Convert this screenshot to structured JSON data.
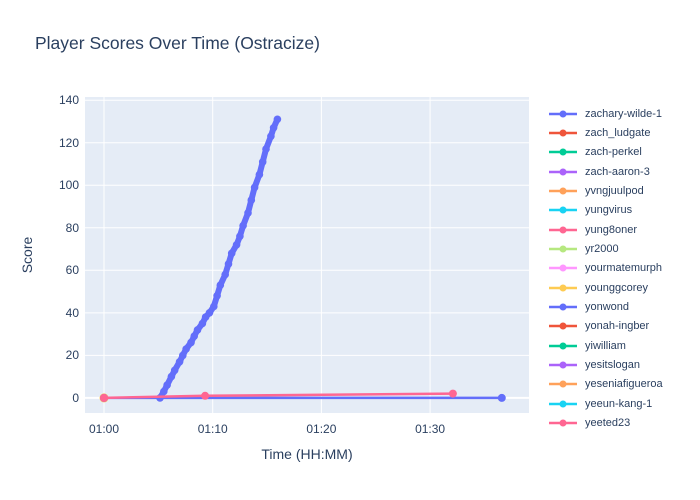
{
  "chart": {
    "title": "Player Scores Over Time (Ostracize)",
    "x_axis_title": "Time (HH:MM)",
    "y_axis_title": "Score",
    "text_color": "#2a3f5f",
    "plot_bg_color": "#e5ecf6",
    "grid_color": "#ffffff"
  },
  "chart_data": {
    "type": "line",
    "title": "Player Scores Over Time (Ostracize)",
    "xlabel": "Time (HH:MM)",
    "ylabel": "Score",
    "x_unit": "minutes since 00:00 (HH:MM clock time)",
    "x_range": [
      58.25,
      99.1
    ],
    "y_range": [
      -7.1,
      141.5
    ],
    "x_ticks": [
      {
        "value": 60,
        "label": "01:00"
      },
      {
        "value": 70,
        "label": "01:10"
      },
      {
        "value": 80,
        "label": "01:20"
      },
      {
        "value": 90,
        "label": "01:30"
      }
    ],
    "y_ticks": [
      0,
      20,
      40,
      60,
      80,
      100,
      120,
      140
    ],
    "grid": true,
    "legend_position": "right",
    "series": [
      {
        "name": "zachary-wilde-1",
        "color": "#636efa",
        "line_width": 6,
        "marker_size": 3.8,
        "points": [
          [
            65.15,
            0
          ],
          [
            65.5,
            3
          ],
          [
            65.8,
            6
          ],
          [
            66.2,
            10
          ],
          [
            66.5,
            13
          ],
          [
            66.95,
            17
          ],
          [
            67.25,
            20
          ],
          [
            67.55,
            23
          ],
          [
            68.0,
            26
          ],
          [
            68.3,
            29
          ],
          [
            68.6,
            32
          ],
          [
            69.05,
            35
          ],
          [
            69.35,
            38
          ],
          [
            69.7,
            40
          ],
          [
            70.1,
            43
          ],
          [
            70.4,
            48
          ],
          [
            70.7,
            53
          ],
          [
            71.15,
            58
          ],
          [
            71.45,
            63
          ],
          [
            71.75,
            68
          ],
          [
            72.2,
            72
          ],
          [
            72.5,
            76
          ],
          [
            72.8,
            81
          ],
          [
            73.25,
            87
          ],
          [
            73.55,
            93
          ],
          [
            73.85,
            99
          ],
          [
            74.3,
            105
          ],
          [
            74.6,
            111
          ],
          [
            74.9,
            117
          ],
          [
            75.35,
            123
          ],
          [
            75.6,
            127
          ],
          [
            75.95,
            131
          ]
        ]
      },
      {
        "name": "zach_ludgate",
        "color": "#ef553b",
        "line_width": 2.5,
        "marker_size": 4,
        "points": []
      },
      {
        "name": "zach-perkel",
        "color": "#00cc96",
        "line_width": 2.5,
        "marker_size": 4,
        "points": []
      },
      {
        "name": "zach-aaron-3",
        "color": "#ab63fa",
        "line_width": 2.5,
        "marker_size": 4,
        "points": []
      },
      {
        "name": "yvngjuulpod",
        "color": "#ffa15a",
        "line_width": 2.5,
        "marker_size": 4,
        "points": []
      },
      {
        "name": "yungvirus",
        "color": "#19d3f3",
        "line_width": 2.5,
        "marker_size": 4,
        "points": []
      },
      {
        "name": "yung8oner",
        "color": "#ff6692",
        "line_width": 2.5,
        "marker_size": 4,
        "points": []
      },
      {
        "name": "yr2000",
        "color": "#b6e880",
        "line_width": 2.5,
        "marker_size": 4,
        "points": []
      },
      {
        "name": "yourmatemurph",
        "color": "#ff97ff",
        "line_width": 2.5,
        "marker_size": 4,
        "points": []
      },
      {
        "name": "younggcorey",
        "color": "#fecb52",
        "line_width": 2.5,
        "marker_size": 4.5,
        "points": [
          [
            60,
            0
          ]
        ]
      },
      {
        "name": "yonwond",
        "color": "#636efa",
        "line_width": 2.5,
        "marker_size": 4,
        "points": [
          [
            60,
            0
          ],
          [
            96.6,
            0
          ]
        ]
      },
      {
        "name": "yonah-ingber",
        "color": "#ef553b",
        "line_width": 2.5,
        "marker_size": 4,
        "points": []
      },
      {
        "name": "yiwilliam",
        "color": "#00cc96",
        "line_width": 2.5,
        "marker_size": 4,
        "points": []
      },
      {
        "name": "yesitslogan",
        "color": "#ab63fa",
        "line_width": 2.5,
        "marker_size": 4,
        "points": []
      },
      {
        "name": "yeseniafigueroa",
        "color": "#ffa15a",
        "line_width": 2.5,
        "marker_size": 4,
        "points": []
      },
      {
        "name": "yeeun-kang-1",
        "color": "#19d3f3",
        "line_width": 2.5,
        "marker_size": 4,
        "points": []
      },
      {
        "name": "yeeted23",
        "color": "#ff6692",
        "line_width": 2.5,
        "marker_size": 4,
        "points": [
          [
            60,
            0
          ],
          [
            69.3,
            1
          ],
          [
            92.1,
            2
          ]
        ]
      }
    ]
  }
}
